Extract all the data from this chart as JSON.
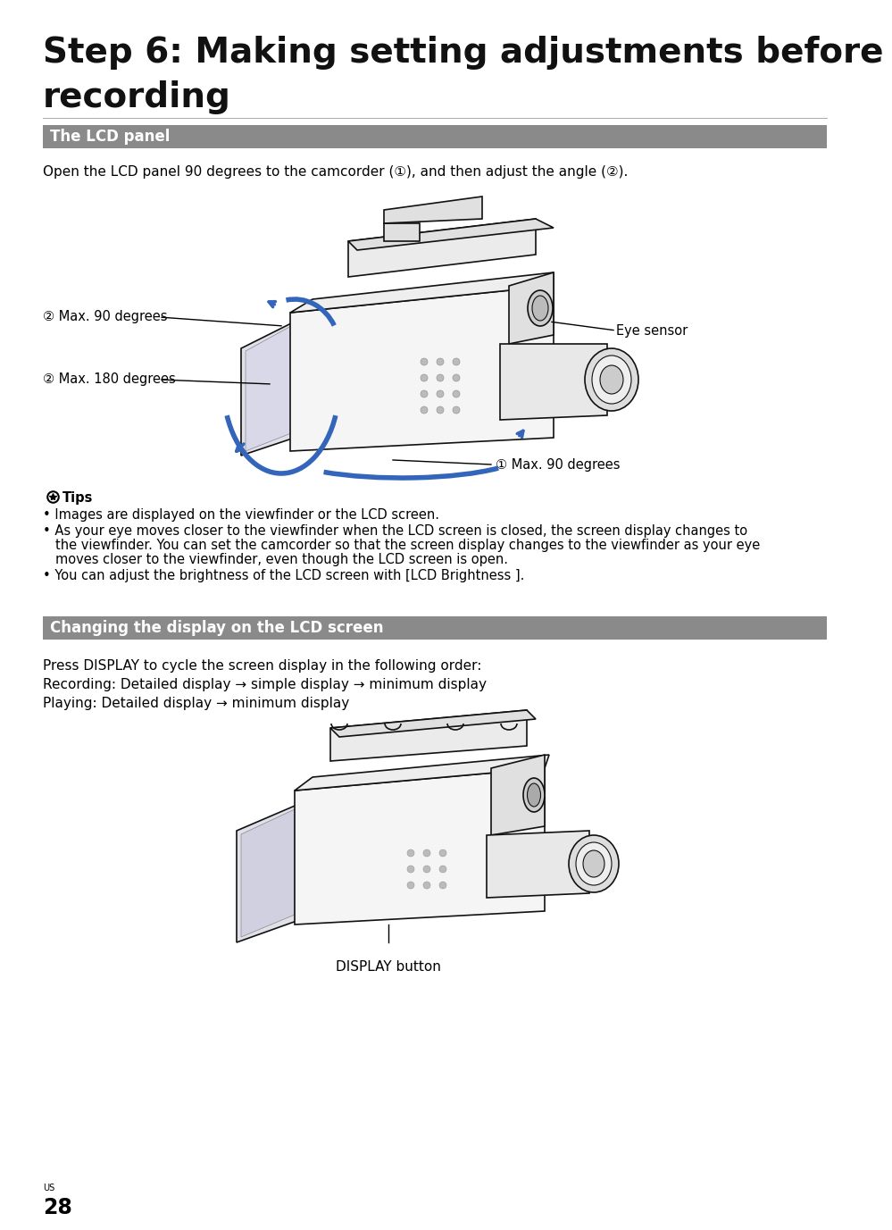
{
  "title_line1": "Step 6: Making setting adjustments before",
  "title_line2": "recording",
  "title_fontsize": 28,
  "section1_label": "The LCD panel",
  "section2_label": "Changing the display on the LCD screen",
  "section_bg": "#8a8a8a",
  "section_text_color": "#ffffff",
  "body_text_color": "#000000",
  "background_color": "#ffffff",
  "open_lcd_text": "Open the LCD panel 90 degrees to the camcorder (①), and then adjust the angle (②).",
  "label_max90_top": "② Max. 90 degrees",
  "label_max180": "② Max. 180 degrees",
  "label_eye_sensor": "Eye sensor",
  "label_max90_bottom": "① Max. 90 degrees",
  "tips_header": "Tips",
  "tip1": "Images are displayed on the viewfinder or the LCD screen.",
  "tip2a": "As your eye moves closer to the viewfinder when the LCD screen is closed, the screen display changes to",
  "tip2b": "the viewfinder. You can set the camcorder so that the screen display changes to the viewfinder as your eye",
  "tip2c": "moves closer to the viewfinder, even though the LCD screen is open.",
  "tip3": "You can adjust the brightness of the LCD screen with [LCD Brightness ].",
  "press_display_text": "Press DISPLAY to cycle the screen display in the following order:",
  "recording_text": "Recording: Detailed display → simple display → minimum display",
  "playing_text": "Playing: Detailed display → minimum display",
  "display_button_label": "DISPLAY button",
  "page_number": "28",
  "page_label": "US",
  "blue_arrow_color": "#3366bb",
  "body_fontsize": 11,
  "tips_fontsize": 10.5,
  "label_fontsize": 10.5
}
